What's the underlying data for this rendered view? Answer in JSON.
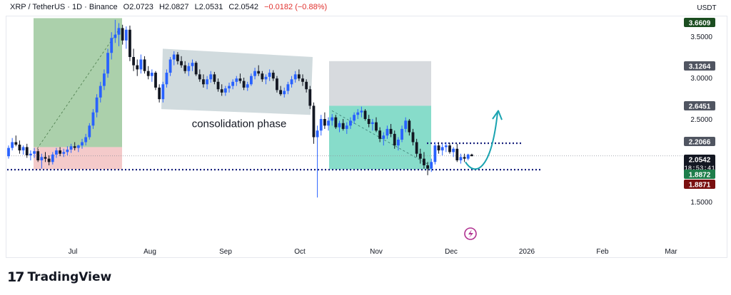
{
  "header": {
    "symbol": "XRP / TetherUS · 1D · Binance",
    "open": "O2.0723",
    "high": "H2.0827",
    "low": "L2.0531",
    "close": "C2.0542",
    "change": "−0.0182 (−0.88%)"
  },
  "branding": {
    "name": "TradingView"
  },
  "colors": {
    "up": "#2962ff",
    "down": "#131722",
    "bull_zone": "#8fc08f",
    "bear_zone": "#f0b8b8",
    "consolidation": "#b8c8cc",
    "target_zone": "#d0d3d8",
    "entry_zone": "#5fd0b8",
    "support_line": "#1a237e",
    "arrow": "#1aa3b0",
    "bolt": "#b03090"
  },
  "chart_data": {
    "type": "candlestick",
    "currency_label": "USDT",
    "x": [
      "Jul",
      "Aug",
      "Sep",
      "Oct",
      "Nov",
      "Dec",
      "2026",
      "Feb",
      "Mar"
    ],
    "ylim": [
      1.3,
      3.8
    ],
    "y_ticks": [
      "3.5000",
      "3.0000",
      "2.5000",
      "1.5000"
    ],
    "price_labels": [
      {
        "value": 3.6609,
        "text": "3.6609",
        "bg": "#1b4d20",
        "fg": "#ffffff"
      },
      {
        "value": 3.1264,
        "text": "3.1264",
        "bg": "#505561",
        "fg": "#ffffff"
      },
      {
        "value": 2.6451,
        "text": "2.6451",
        "bg": "#505561",
        "fg": "#ffffff"
      },
      {
        "value": 2.2066,
        "text": "2.2066",
        "bg": "#505561",
        "fg": "#ffffff"
      },
      {
        "value": 2.0542,
        "text": "2.0542",
        "sub": "18:53:41",
        "bg": "#131722",
        "fg": "#ffffff"
      },
      {
        "value": 1.8872,
        "text": "1.8872",
        "bg": "#1e7d4a",
        "fg": "#ffffff"
      },
      {
        "value": 1.8871,
        "text": "1.8871",
        "bg": "#7a1010",
        "fg": "#ffffff"
      }
    ],
    "annotations": [
      {
        "text": "consolidation phase"
      }
    ],
    "horizontal_levels": [
      {
        "value": 2.2066,
        "style": "dotted"
      },
      {
        "value": 1.8871,
        "style": "dotted"
      }
    ],
    "current_price": 2.0542,
    "series": [
      {
        "values": [
          [
            2.05,
            2.18,
            2.02,
            2.15
          ],
          [
            2.15,
            2.27,
            2.12,
            2.22
          ],
          [
            2.22,
            2.3,
            2.17,
            2.19
          ],
          [
            2.19,
            2.24,
            2.08,
            2.12
          ],
          [
            2.12,
            2.18,
            2.07,
            2.16
          ],
          [
            2.16,
            2.2,
            2.03,
            2.06
          ],
          [
            2.06,
            2.12,
            2.0,
            2.08
          ],
          [
            2.08,
            2.15,
            2.03,
            2.11
          ],
          [
            2.11,
            2.14,
            1.98,
            2.0
          ],
          [
            2.0,
            2.08,
            1.9,
            2.04
          ],
          [
            2.04,
            2.1,
            1.98,
            2.02
          ],
          [
            2.02,
            2.06,
            1.94,
            1.98
          ],
          [
            1.98,
            2.1,
            1.95,
            2.07
          ],
          [
            2.07,
            2.15,
            2.03,
            2.12
          ],
          [
            2.12,
            2.16,
            2.05,
            2.08
          ],
          [
            2.08,
            2.14,
            2.04,
            2.1
          ],
          [
            2.1,
            2.17,
            2.06,
            2.13
          ],
          [
            2.13,
            2.2,
            2.09,
            2.17
          ],
          [
            2.17,
            2.22,
            2.12,
            2.15
          ],
          [
            2.15,
            2.19,
            2.1,
            2.18
          ],
          [
            2.18,
            2.26,
            2.14,
            2.22
          ],
          [
            2.22,
            2.32,
            2.18,
            2.28
          ],
          [
            2.28,
            2.45,
            2.25,
            2.42
          ],
          [
            2.42,
            2.62,
            2.38,
            2.58
          ],
          [
            2.58,
            2.8,
            2.52,
            2.76
          ],
          [
            2.76,
            2.95,
            2.7,
            2.9
          ],
          [
            2.9,
            3.1,
            2.85,
            3.05
          ],
          [
            3.05,
            3.35,
            3.0,
            3.3
          ],
          [
            3.3,
            3.55,
            3.22,
            3.48
          ],
          [
            3.48,
            3.7,
            3.42,
            3.52
          ],
          [
            3.52,
            3.66,
            3.38,
            3.6
          ],
          [
            3.6,
            3.64,
            3.4,
            3.45
          ],
          [
            3.45,
            3.62,
            3.35,
            3.58
          ],
          [
            3.58,
            3.63,
            3.2,
            3.25
          ],
          [
            3.25,
            3.35,
            3.08,
            3.15
          ],
          [
            3.15,
            3.22,
            3.02,
            3.1
          ],
          [
            3.1,
            3.28,
            3.05,
            3.22
          ],
          [
            3.22,
            3.26,
            3.05,
            3.08
          ],
          [
            3.08,
            3.14,
            2.98,
            3.02
          ],
          [
            3.02,
            3.1,
            2.95,
            3.06
          ],
          [
            3.06,
            3.08,
            2.85,
            2.88
          ],
          [
            2.88,
            2.92,
            2.7,
            2.74
          ],
          [
            2.74,
            2.95,
            2.7,
            2.92
          ],
          [
            2.92,
            3.1,
            2.88,
            3.06
          ],
          [
            3.06,
            3.25,
            3.02,
            3.22
          ],
          [
            3.22,
            3.32,
            3.15,
            3.28
          ],
          [
            3.28,
            3.31,
            3.16,
            3.2
          ],
          [
            3.2,
            3.26,
            3.12,
            3.15
          ],
          [
            3.15,
            3.2,
            3.05,
            3.08
          ],
          [
            3.08,
            3.18,
            3.02,
            3.14
          ],
          [
            3.14,
            3.22,
            3.08,
            3.18
          ],
          [
            3.18,
            3.2,
            3.02,
            3.04
          ],
          [
            3.04,
            3.1,
            2.95,
            2.98
          ],
          [
            2.98,
            3.04,
            2.88,
            2.92
          ],
          [
            2.92,
            3.02,
            2.86,
            2.98
          ],
          [
            2.98,
            3.08,
            2.94,
            3.04
          ],
          [
            3.04,
            3.07,
            2.92,
            2.95
          ],
          [
            2.95,
            2.99,
            2.83,
            2.86
          ],
          [
            2.86,
            2.92,
            2.78,
            2.82
          ],
          [
            2.82,
            2.9,
            2.78,
            2.87
          ],
          [
            2.87,
            2.94,
            2.82,
            2.9
          ],
          [
            2.9,
            2.98,
            2.86,
            2.95
          ],
          [
            2.95,
            3.02,
            2.9,
            2.99
          ],
          [
            2.99,
            3.05,
            2.93,
            2.96
          ],
          [
            2.96,
            3.0,
            2.85,
            2.88
          ],
          [
            2.88,
            2.95,
            2.84,
            2.92
          ],
          [
            2.92,
            3.05,
            2.9,
            3.02
          ],
          [
            3.02,
            3.12,
            2.98,
            3.08
          ],
          [
            3.08,
            3.15,
            3.02,
            3.05
          ],
          [
            3.05,
            3.08,
            2.95,
            2.98
          ],
          [
            2.98,
            3.04,
            2.92,
            3.01
          ],
          [
            3.01,
            3.1,
            2.96,
            3.06
          ],
          [
            3.06,
            3.09,
            2.96,
            2.99
          ],
          [
            2.99,
            3.02,
            2.82,
            2.85
          ],
          [
            2.85,
            2.9,
            2.78,
            2.8
          ],
          [
            2.8,
            2.88,
            2.76,
            2.84
          ],
          [
            2.84,
            2.95,
            2.8,
            2.92
          ],
          [
            2.92,
            3.02,
            2.88,
            2.98
          ],
          [
            2.98,
            3.08,
            2.94,
            3.04
          ],
          [
            3.04,
            3.1,
            2.96,
            2.99
          ],
          [
            2.99,
            3.04,
            2.9,
            2.95
          ],
          [
            2.95,
            2.98,
            2.82,
            2.86
          ],
          [
            2.86,
            2.9,
            2.62,
            2.66
          ],
          [
            2.66,
            2.7,
            2.2,
            2.28
          ],
          [
            2.28,
            2.42,
            1.55,
            2.36
          ],
          [
            2.36,
            2.55,
            2.3,
            2.5
          ],
          [
            2.5,
            2.58,
            2.38,
            2.42
          ],
          [
            2.42,
            2.52,
            2.36,
            2.48
          ],
          [
            2.48,
            2.56,
            2.42,
            2.52
          ],
          [
            2.52,
            2.55,
            2.38,
            2.4
          ],
          [
            2.4,
            2.48,
            2.34,
            2.45
          ],
          [
            2.45,
            2.5,
            2.36,
            2.38
          ],
          [
            2.38,
            2.46,
            2.32,
            2.42
          ],
          [
            2.42,
            2.52,
            2.38,
            2.48
          ],
          [
            2.48,
            2.58,
            2.44,
            2.55
          ],
          [
            2.55,
            2.62,
            2.5,
            2.58
          ],
          [
            2.58,
            2.65,
            2.52,
            2.6
          ],
          [
            2.6,
            2.62,
            2.48,
            2.5
          ],
          [
            2.5,
            2.55,
            2.4,
            2.44
          ],
          [
            2.44,
            2.5,
            2.36,
            2.46
          ],
          [
            2.46,
            2.52,
            2.34,
            2.36
          ],
          [
            2.36,
            2.4,
            2.22,
            2.26
          ],
          [
            2.26,
            2.34,
            2.18,
            2.3
          ],
          [
            2.3,
            2.42,
            2.26,
            2.38
          ],
          [
            2.38,
            2.44,
            2.28,
            2.32
          ],
          [
            2.32,
            2.36,
            2.14,
            2.18
          ],
          [
            2.18,
            2.28,
            2.12,
            2.25
          ],
          [
            2.25,
            2.42,
            2.22,
            2.38
          ],
          [
            2.38,
            2.52,
            2.34,
            2.48
          ],
          [
            2.48,
            2.5,
            2.3,
            2.34
          ],
          [
            2.34,
            2.38,
            2.18,
            2.22
          ],
          [
            2.22,
            2.26,
            2.04,
            2.08
          ],
          [
            2.08,
            2.14,
            1.96,
            2.02
          ],
          [
            2.02,
            2.1,
            1.9,
            1.94
          ],
          [
            1.94,
            1.98,
            1.82,
            1.9
          ],
          [
            1.9,
            2.02,
            1.86,
            1.98
          ],
          [
            1.98,
            2.22,
            1.95,
            2.18
          ],
          [
            2.18,
            2.22,
            2.08,
            2.12
          ],
          [
            2.12,
            2.2,
            2.06,
            2.16
          ],
          [
            2.16,
            2.22,
            2.1,
            2.18
          ],
          [
            2.18,
            2.21,
            2.08,
            2.1
          ],
          [
            2.1,
            2.16,
            2.04,
            2.14
          ],
          [
            2.14,
            2.2,
            1.98,
            2.0
          ],
          [
            2.0,
            2.08,
            1.96,
            2.04
          ],
          [
            2.04,
            2.08,
            1.98,
            2.02
          ],
          [
            2.02,
            2.08,
            2.0,
            2.07
          ],
          [
            2.07,
            2.08,
            2.05,
            2.05
          ]
        ]
      }
    ]
  }
}
